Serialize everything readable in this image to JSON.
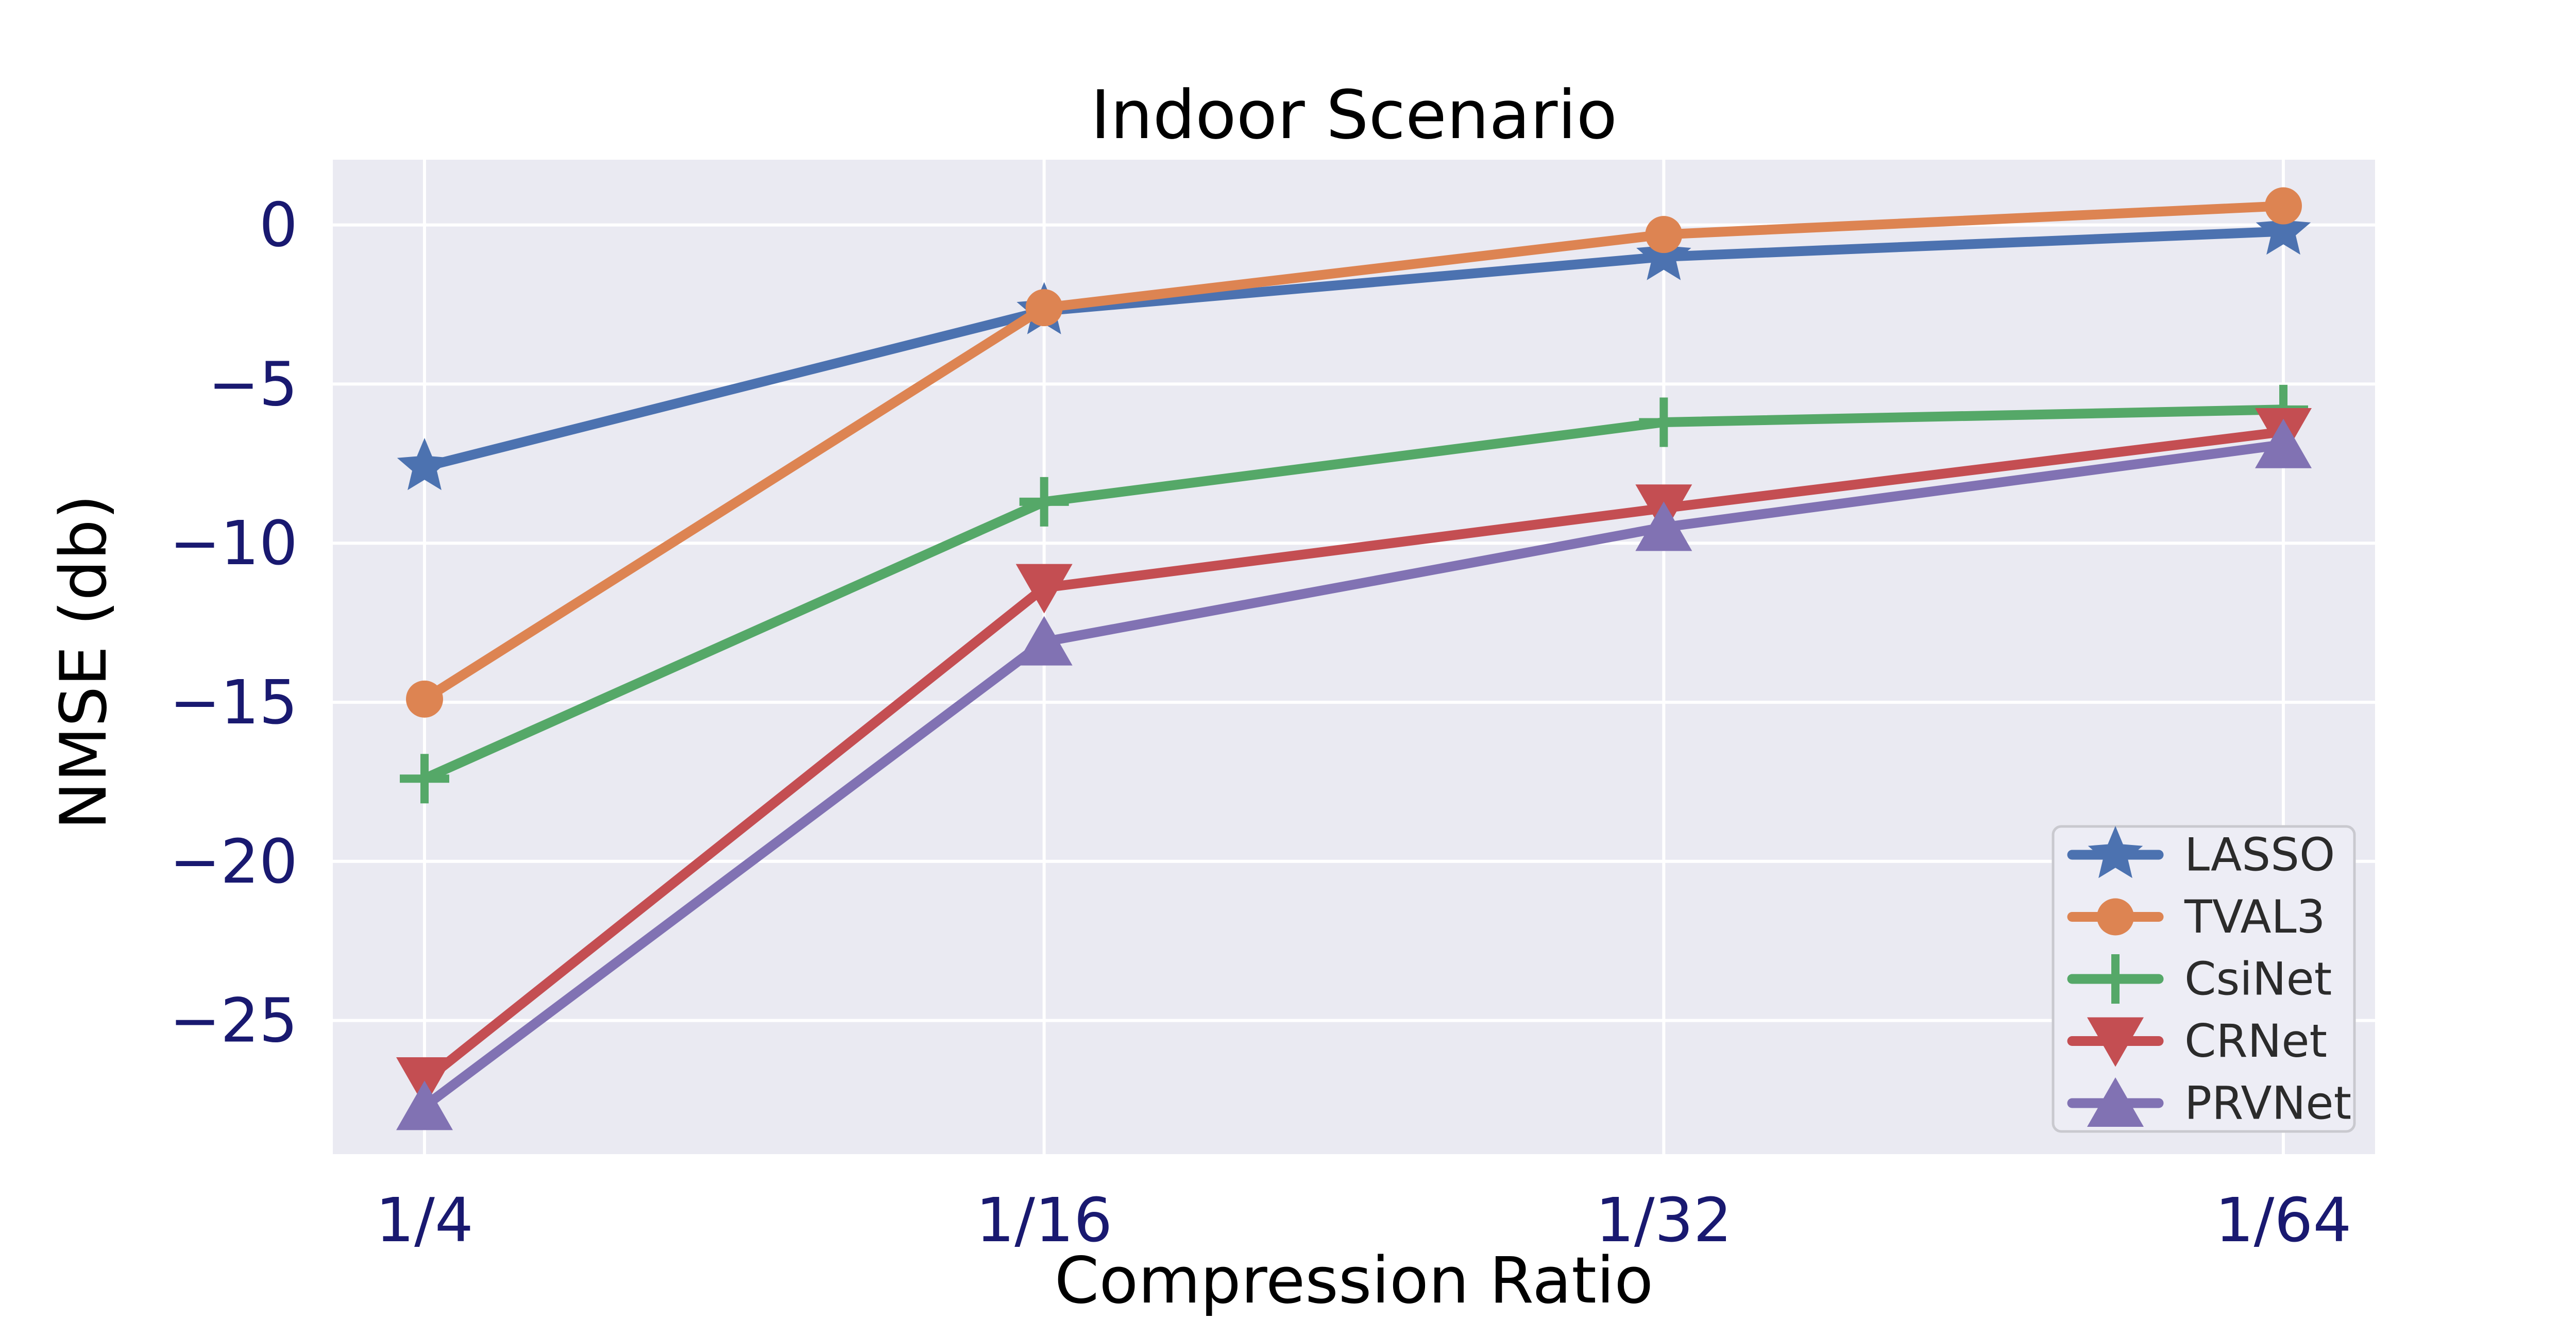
{
  "chart_data": {
    "type": "line",
    "title": "Indoor Scenario",
    "xlabel": "Compression Ratio",
    "ylabel": "NMSE (db)",
    "categories": [
      "1/4",
      "1/16",
      "1/32",
      "1/64"
    ],
    "series": [
      {
        "name": "LASSO",
        "color": "#4C72B0",
        "marker": "star",
        "values": [
          -7.6,
          -2.7,
          -1.0,
          -0.2
        ]
      },
      {
        "name": "TVAL3",
        "color": "#DD8452",
        "marker": "circle",
        "values": [
          -14.9,
          -2.6,
          -0.3,
          0.6
        ]
      },
      {
        "name": "CsiNet",
        "color": "#55A868",
        "marker": "plus",
        "values": [
          -17.4,
          -8.7,
          -6.2,
          -5.8
        ]
      },
      {
        "name": "CRNet",
        "color": "#C44E52",
        "marker": "triangle-down",
        "values": [
          -26.9,
          -11.4,
          -8.9,
          -6.5
        ]
      },
      {
        "name": "PRVNet",
        "color": "#8172B3",
        "marker": "triangle-up",
        "values": [
          -27.7,
          -13.1,
          -9.5,
          -6.9
        ]
      }
    ],
    "yticks": [
      0,
      -5,
      -10,
      -15,
      -20,
      -25
    ],
    "ylim": [
      -29.2,
      2.05
    ],
    "grid": true,
    "legend_position": "lower right",
    "axes_background": "#EAEAF2",
    "grid_color": "#FFFFFF",
    "figure_background": "#FFFFFF",
    "text_color": "#191970",
    "legend_text_color": "#2B2B2B",
    "legend_border_color": "#C9C9CF",
    "legend_background": "#EDEDF5"
  }
}
